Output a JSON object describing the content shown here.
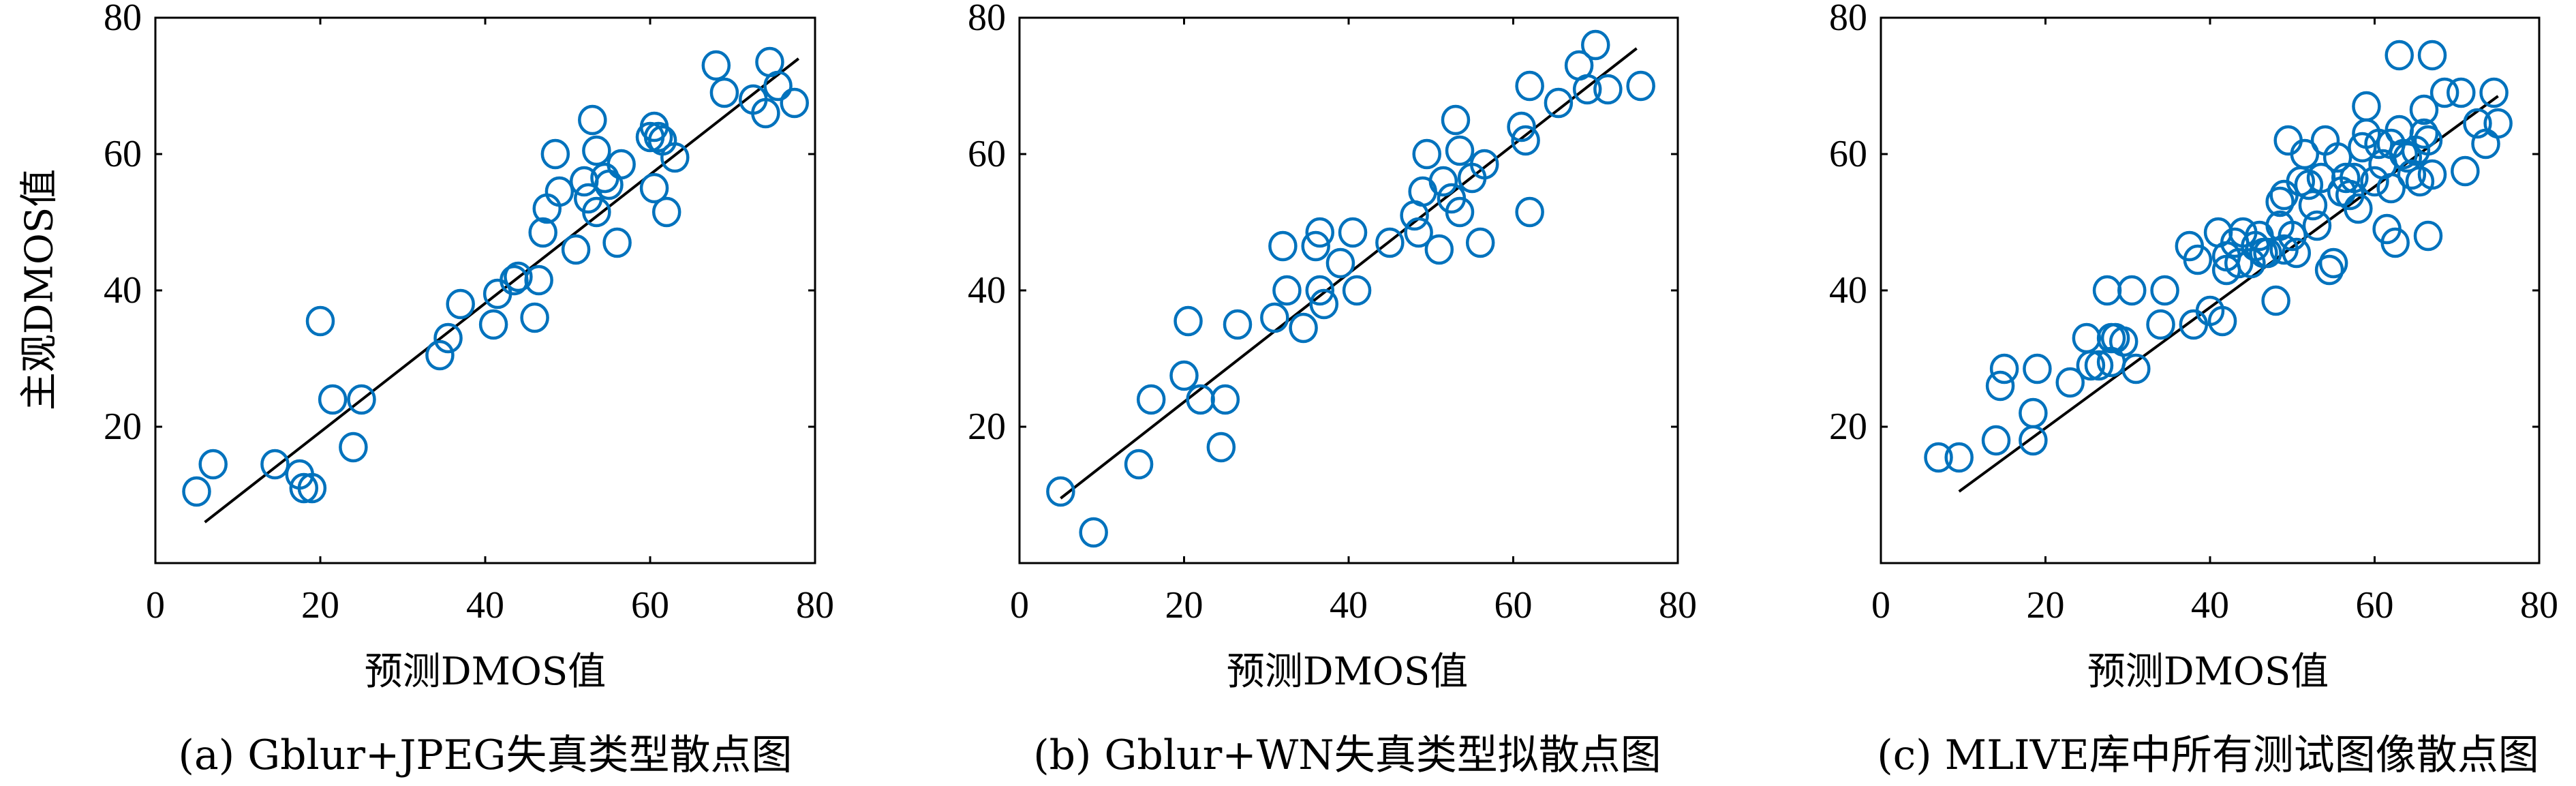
{
  "colors": {
    "marker": "#0072BD",
    "fit_line": "#000000",
    "axes": "#000000"
  },
  "chart_data": [
    {
      "type": "scatter",
      "caption": "(a) Gblur+JPEG失真类型散点图",
      "xlabel": "预测DMOS值",
      "ylabel": "主观DMOS值",
      "xlim": [
        0,
        80
      ],
      "ylim": [
        0,
        80
      ],
      "xticks": [
        0,
        20,
        40,
        60,
        80
      ],
      "yticks": [
        20,
        40,
        60,
        80
      ],
      "marker": "circle-open",
      "fit_line": [
        [
          6,
          6
        ],
        [
          78,
          74
        ]
      ],
      "points": [
        [
          5,
          10.5
        ],
        [
          7,
          14.5
        ],
        [
          14.5,
          14.5
        ],
        [
          17.5,
          13
        ],
        [
          18,
          11
        ],
        [
          19,
          11
        ],
        [
          20,
          35.5
        ],
        [
          21.5,
          24
        ],
        [
          24,
          17
        ],
        [
          25,
          24
        ],
        [
          34.5,
          30.5
        ],
        [
          35.5,
          33
        ],
        [
          37,
          38
        ],
        [
          41,
          35
        ],
        [
          41.5,
          39.5
        ],
        [
          43.5,
          41.5
        ],
        [
          44,
          42
        ],
        [
          46,
          36
        ],
        [
          46.5,
          41.5
        ],
        [
          47,
          48.5
        ],
        [
          47.5,
          52
        ],
        [
          48.5,
          60
        ],
        [
          49,
          54.5
        ],
        [
          51,
          46
        ],
        [
          52,
          56
        ],
        [
          52.5,
          53.5
        ],
        [
          53,
          65
        ],
        [
          53.5,
          51.5
        ],
        [
          53.5,
          60.5
        ],
        [
          54.5,
          56.5
        ],
        [
          55,
          55.5
        ],
        [
          56,
          47
        ],
        [
          56.5,
          58.5
        ],
        [
          60,
          62.5
        ],
        [
          60.5,
          64
        ],
        [
          60.5,
          55
        ],
        [
          61,
          62.5
        ],
        [
          61.5,
          62
        ],
        [
          62,
          51.5
        ],
        [
          63,
          59.5
        ],
        [
          68,
          73
        ],
        [
          69,
          69
        ],
        [
          72.5,
          68
        ],
        [
          74,
          66
        ],
        [
          74.5,
          73.5
        ],
        [
          75.5,
          70
        ],
        [
          77.5,
          67.5
        ]
      ]
    },
    {
      "type": "scatter",
      "caption": "(b) Gblur+WN失真类型拟散点图",
      "xlabel": "预测DMOS值",
      "ylabel": "",
      "xlim": [
        0,
        80
      ],
      "ylim": [
        0,
        80
      ],
      "xticks": [
        0,
        20,
        40,
        60,
        80
      ],
      "yticks": [
        20,
        40,
        60,
        80
      ],
      "marker": "circle-open",
      "fit_line": [
        [
          5,
          9.5
        ],
        [
          75,
          75.5
        ]
      ],
      "points": [
        [
          5,
          10.5
        ],
        [
          9,
          4.5
        ],
        [
          14.5,
          14.5
        ],
        [
          16,
          24
        ],
        [
          20,
          27.5
        ],
        [
          20.5,
          35.5
        ],
        [
          22,
          24
        ],
        [
          24.5,
          17
        ],
        [
          25,
          24
        ],
        [
          26.5,
          35
        ],
        [
          31,
          36
        ],
        [
          32,
          46.5
        ],
        [
          32.5,
          40
        ],
        [
          34.5,
          34.5
        ],
        [
          36,
          46.5
        ],
        [
          36.5,
          48.5
        ],
        [
          36.5,
          40
        ],
        [
          37,
          38
        ],
        [
          39,
          44
        ],
        [
          40.5,
          48.5
        ],
        [
          41,
          40
        ],
        [
          45,
          47
        ],
        [
          48,
          51
        ],
        [
          48.5,
          48.5
        ],
        [
          49,
          54.5
        ],
        [
          49.5,
          60
        ],
        [
          51,
          46
        ],
        [
          51.5,
          56
        ],
        [
          52.5,
          53.5
        ],
        [
          53,
          65
        ],
        [
          53.5,
          60.5
        ],
        [
          53.5,
          51.5
        ],
        [
          55,
          56.5
        ],
        [
          56,
          47
        ],
        [
          56.5,
          58.5
        ],
        [
          61,
          64
        ],
        [
          61.5,
          62
        ],
        [
          62,
          70
        ],
        [
          62,
          51.5
        ],
        [
          65.5,
          67.5
        ],
        [
          68,
          73
        ],
        [
          69,
          69.5
        ],
        [
          70,
          76
        ],
        [
          71.5,
          69.5
        ],
        [
          75.5,
          70
        ]
      ]
    },
    {
      "type": "scatter",
      "caption": "(c) MLIVE库中所有测试图像散点图",
      "xlabel": "预测DMOS值",
      "ylabel": "",
      "xlim": [
        0,
        80
      ],
      "ylim": [
        0,
        80
      ],
      "xticks": [
        0,
        20,
        40,
        60,
        80
      ],
      "yticks": [
        20,
        40,
        60,
        80
      ],
      "marker": "circle-open",
      "fit_line": [
        [
          9.5,
          10.5
        ],
        [
          75,
          68.5
        ]
      ],
      "points": [
        [
          7,
          15.5
        ],
        [
          9.5,
          15.5
        ],
        [
          14,
          18
        ],
        [
          14.5,
          26
        ],
        [
          15,
          28.5
        ],
        [
          18.5,
          18
        ],
        [
          18.5,
          22
        ],
        [
          19,
          28.5
        ],
        [
          23,
          26.5
        ],
        [
          25,
          33
        ],
        [
          25.5,
          29
        ],
        [
          26.5,
          29
        ],
        [
          27.5,
          40
        ],
        [
          28,
          33
        ],
        [
          28,
          29.5
        ],
        [
          28.5,
          33
        ],
        [
          29.5,
          32.5
        ],
        [
          30.5,
          40
        ],
        [
          31,
          28.5
        ],
        [
          34,
          35
        ],
        [
          34.5,
          40
        ],
        [
          37.5,
          46.5
        ],
        [
          38,
          35
        ],
        [
          38.5,
          44.5
        ],
        [
          40,
          37
        ],
        [
          41,
          48.5
        ],
        [
          41.5,
          35.5
        ],
        [
          42,
          45
        ],
        [
          42,
          43
        ],
        [
          43,
          47
        ],
        [
          43.5,
          44
        ],
        [
          44,
          48.5
        ],
        [
          45,
          44
        ],
        [
          45.5,
          46.5
        ],
        [
          46,
          48
        ],
        [
          46.5,
          45.5
        ],
        [
          47,
          45.5
        ],
        [
          48,
          38.5
        ],
        [
          48.5,
          53
        ],
        [
          48.5,
          49.5
        ],
        [
          49,
          46
        ],
        [
          49,
          54
        ],
        [
          49.5,
          62
        ],
        [
          50,
          48
        ],
        [
          50.5,
          45.5
        ],
        [
          51,
          56
        ],
        [
          51.5,
          60
        ],
        [
          52,
          55.5
        ],
        [
          52.5,
          52.5
        ],
        [
          53,
          49.5
        ],
        [
          53.5,
          56.5
        ],
        [
          54,
          62
        ],
        [
          54.5,
          43
        ],
        [
          55,
          44
        ],
        [
          55.5,
          59.5
        ],
        [
          56,
          54.5
        ],
        [
          56.5,
          56.5
        ],
        [
          57,
          54
        ],
        [
          57.5,
          56.5
        ],
        [
          58,
          52
        ],
        [
          58.5,
          61
        ],
        [
          59,
          67
        ],
        [
          59,
          63
        ],
        [
          60,
          56
        ],
        [
          60.5,
          61.5
        ],
        [
          61,
          58.5
        ],
        [
          61.5,
          49
        ],
        [
          62,
          61.5
        ],
        [
          62,
          55
        ],
        [
          62.5,
          47
        ],
        [
          63,
          74.5
        ],
        [
          63,
          63.5
        ],
        [
          63.5,
          60
        ],
        [
          64,
          59.5
        ],
        [
          64.5,
          57
        ],
        [
          65,
          60.5
        ],
        [
          65.5,
          56
        ],
        [
          66,
          66.5
        ],
        [
          66,
          63
        ],
        [
          66.5,
          62
        ],
        [
          66.5,
          48
        ],
        [
          67,
          74.5
        ],
        [
          67,
          57
        ],
        [
          68.5,
          69
        ],
        [
          70.5,
          69
        ],
        [
          71,
          57.5
        ],
        [
          72.5,
          64.5
        ],
        [
          73.5,
          61.5
        ],
        [
          74.5,
          69
        ],
        [
          75,
          64.5
        ]
      ]
    }
  ]
}
